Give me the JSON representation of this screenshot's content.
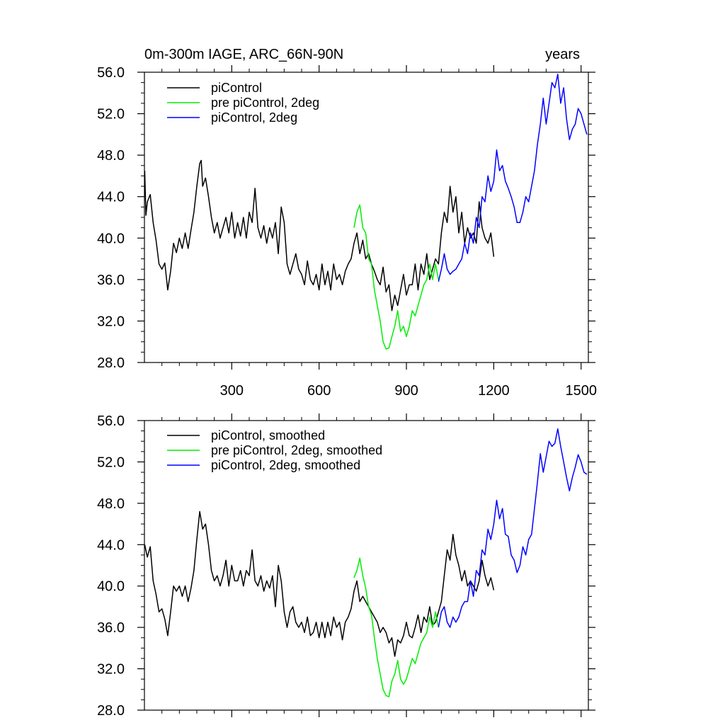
{
  "panel_top_title": "0m-300m IAGE, ARC_66N-90N",
  "panel_top_units": "years",
  "chart_data": [
    {
      "type": "line",
      "title": "0m-300m IAGE, ARC_66N-90N",
      "units_label": "years",
      "xlim": [
        0,
        1525
      ],
      "ylim": [
        28,
        56
      ],
      "x_ticks": [
        300,
        600,
        900,
        1200,
        1500
      ],
      "x_tick_labels": [
        "300",
        "600",
        "900",
        "1200",
        "1500"
      ],
      "y_ticks": [
        28,
        32,
        36,
        40,
        44,
        48,
        52,
        56
      ],
      "y_tick_labels": [
        "28.0",
        "32.0",
        "36.0",
        "40.0",
        "44.0",
        "48.0",
        "52.0",
        "56.0"
      ],
      "legend_position": "top-left",
      "series": [
        {
          "name": "piControl",
          "color": "#000000",
          "x": [
            1,
            5,
            10,
            20,
            30,
            40,
            50,
            60,
            70,
            80,
            90,
            100,
            110,
            120,
            130,
            140,
            150,
            160,
            170,
            180,
            190,
            195,
            200,
            210,
            220,
            230,
            240,
            250,
            260,
            270,
            280,
            290,
            300,
            310,
            320,
            330,
            340,
            350,
            360,
            370,
            380,
            390,
            400,
            410,
            420,
            430,
            440,
            450,
            460,
            470,
            480,
            490,
            500,
            510,
            520,
            530,
            540,
            550,
            560,
            570,
            580,
            590,
            600,
            610,
            620,
            630,
            640,
            650,
            660,
            670,
            680,
            690,
            700,
            710,
            720,
            730,
            740,
            750,
            760,
            770,
            780,
            790,
            800,
            810,
            820,
            830,
            840,
            850,
            860,
            870,
            880,
            890,
            900,
            910,
            920,
            930,
            940,
            950,
            960,
            970,
            980,
            990,
            1000,
            1010,
            1020,
            1030,
            1040,
            1050,
            1060,
            1070,
            1080,
            1090,
            1100,
            1110,
            1120,
            1130,
            1140,
            1150,
            1160,
            1170,
            1180,
            1190,
            1200
          ],
          "y": [
            46.5,
            42.2,
            43.5,
            44.2,
            41.5,
            39.8,
            37.5,
            37.0,
            37.6,
            35.0,
            36.8,
            39.5,
            38.6,
            40.0,
            39.0,
            40.5,
            39.0,
            40.8,
            42.5,
            45.0,
            47.2,
            47.5,
            45.0,
            45.8,
            44.0,
            42.0,
            40.5,
            41.5,
            40.0,
            41.0,
            42.0,
            40.5,
            42.5,
            40.0,
            41.5,
            40.2,
            42.0,
            40.0,
            42.5,
            41.5,
            44.8,
            41.0,
            40.0,
            41.2,
            39.5,
            41.0,
            40.0,
            41.5,
            38.5,
            43.0,
            41.5,
            37.5,
            36.5,
            37.5,
            38.5,
            37.0,
            36.5,
            35.5,
            37.8,
            36.0,
            35.5,
            36.5,
            35.0,
            37.5,
            35.5,
            36.8,
            35.0,
            37.5,
            36.0,
            36.5,
            35.5,
            36.8,
            37.5,
            38.0,
            39.5,
            40.5,
            38.5,
            39.8,
            38.0,
            38.5,
            37.5,
            36.8,
            36.0,
            35.5,
            37.2,
            34.8,
            35.5,
            33.0,
            34.5,
            33.5,
            35.0,
            36.5,
            34.5,
            35.5,
            35.5,
            37.5,
            35.0,
            37.5,
            36.5,
            38.5,
            36.0,
            37.0,
            38.0,
            37.5,
            40.5,
            42.5,
            41.5,
            45.0,
            42.5,
            44.0,
            40.5,
            42.5,
            39.5,
            41.0,
            40.0,
            40.5,
            39.5,
            43.5,
            41.0,
            40.0,
            39.5,
            40.5,
            38.2
          ]
        },
        {
          "name": "pre piControl, 2deg",
          "color": "#00ee00",
          "x": [
            720,
            730,
            740,
            750,
            760,
            770,
            780,
            790,
            800,
            810,
            820,
            830,
            840,
            850,
            860,
            870,
            880,
            890,
            900,
            910,
            920,
            930,
            940,
            950,
            960,
            970,
            980,
            990,
            1000,
            1010
          ],
          "y": [
            41.0,
            42.5,
            43.2,
            41.0,
            40.5,
            38.0,
            37.5,
            35.0,
            33.5,
            32.0,
            30.0,
            29.3,
            29.4,
            30.5,
            31.5,
            33.0,
            31.0,
            31.5,
            30.5,
            31.5,
            33.0,
            32.5,
            33.5,
            34.5,
            35.5,
            36.0,
            37.5,
            36.0,
            37.5,
            36.0
          ]
        },
        {
          "name": "piControl, 2deg",
          "color": "#0000ff",
          "x": [
            1010,
            1020,
            1030,
            1040,
            1050,
            1060,
            1070,
            1080,
            1090,
            1100,
            1110,
            1120,
            1130,
            1140,
            1150,
            1160,
            1170,
            1180,
            1190,
            1200,
            1210,
            1220,
            1230,
            1240,
            1250,
            1260,
            1270,
            1280,
            1290,
            1300,
            1310,
            1320,
            1330,
            1340,
            1350,
            1360,
            1370,
            1380,
            1390,
            1400,
            1410,
            1420,
            1430,
            1440,
            1450,
            1460,
            1470,
            1480,
            1490,
            1500,
            1510,
            1520
          ],
          "y": [
            35.8,
            37.0,
            38.5,
            37.0,
            36.5,
            36.8,
            37.0,
            37.5,
            38.0,
            39.5,
            38.5,
            40.5,
            39.5,
            42.0,
            41.0,
            44.0,
            43.5,
            46.0,
            44.5,
            45.5,
            48.5,
            46.5,
            47.0,
            45.5,
            44.8,
            44.0,
            43.0,
            41.5,
            41.5,
            42.5,
            44.0,
            43.5,
            45.0,
            46.5,
            49.0,
            51.0,
            53.5,
            51.0,
            53.0,
            55.0,
            54.5,
            55.8,
            53.0,
            54.5,
            51.5,
            49.5,
            50.5,
            51.0,
            52.5,
            52.0,
            51.0,
            50.0
          ]
        }
      ]
    },
    {
      "type": "line",
      "xlim": [
        0,
        1525
      ],
      "ylim": [
        28,
        56
      ],
      "x_ticks": [
        300,
        600,
        900,
        1200,
        1500
      ],
      "y_ticks": [
        28,
        32,
        36,
        40,
        44,
        48,
        52,
        56
      ],
      "y_tick_labels": [
        "28.0",
        "32.0",
        "36.0",
        "40.0",
        "44.0",
        "48.0",
        "52.0",
        "56.0"
      ],
      "legend_position": "top-left",
      "series": [
        {
          "name": "piControl, smoothed",
          "color": "#000000",
          "x": [
            1,
            10,
            20,
            30,
            40,
            50,
            60,
            70,
            80,
            90,
            100,
            110,
            120,
            130,
            140,
            150,
            160,
            170,
            180,
            190,
            200,
            210,
            220,
            230,
            240,
            250,
            260,
            270,
            280,
            290,
            300,
            310,
            320,
            330,
            340,
            350,
            360,
            370,
            380,
            390,
            400,
            410,
            420,
            430,
            440,
            450,
            460,
            470,
            480,
            490,
            500,
            510,
            520,
            530,
            540,
            550,
            560,
            570,
            580,
            590,
            600,
            610,
            620,
            630,
            640,
            650,
            660,
            670,
            680,
            690,
            700,
            710,
            720,
            730,
            740,
            750,
            760,
            770,
            780,
            790,
            800,
            810,
            820,
            830,
            840,
            850,
            860,
            870,
            880,
            890,
            900,
            910,
            920,
            930,
            940,
            950,
            960,
            970,
            980,
            990,
            1000,
            1010,
            1020,
            1030,
            1040,
            1050,
            1060,
            1070,
            1080,
            1090,
            1100,
            1110,
            1120,
            1130,
            1140,
            1150,
            1160,
            1170,
            1180,
            1190,
            1200
          ],
          "y": [
            44.0,
            42.8,
            43.8,
            40.5,
            39.2,
            37.5,
            37.8,
            36.8,
            35.2,
            37.5,
            40.0,
            39.5,
            40.0,
            39.0,
            40.0,
            38.5,
            39.8,
            41.5,
            44.5,
            47.2,
            45.5,
            46.0,
            44.0,
            41.5,
            40.5,
            41.0,
            40.0,
            41.0,
            42.5,
            40.0,
            42.0,
            40.5,
            40.5,
            41.5,
            40.0,
            41.5,
            41.0,
            43.5,
            40.5,
            40.0,
            41.0,
            39.5,
            40.5,
            39.8,
            41.0,
            38.0,
            42.0,
            40.5,
            37.5,
            36.0,
            37.5,
            38.0,
            36.5,
            36.0,
            36.5,
            35.5,
            37.0,
            35.2,
            35.5,
            36.5,
            35.0,
            36.5,
            35.0,
            36.5,
            35.2,
            37.0,
            36.0,
            36.5,
            34.8,
            36.5,
            37.0,
            37.8,
            39.5,
            40.5,
            38.5,
            39.0,
            38.5,
            38.0,
            37.5,
            37.0,
            36.5,
            35.5,
            36.0,
            35.5,
            34.5,
            35.0,
            33.2,
            34.8,
            34.5,
            35.2,
            36.5,
            35.2,
            35.0,
            36.0,
            37.2,
            35.5,
            37.0,
            36.5,
            38.0,
            36.2,
            36.5,
            37.5,
            38.5,
            41.0,
            43.5,
            42.5,
            45.0,
            43.0,
            42.0,
            40.5,
            41.5,
            40.0,
            40.5,
            40.0,
            39.5,
            40.5,
            42.5,
            41.0,
            40.0,
            40.8,
            39.6
          ]
        },
        {
          "name": "pre piControl, 2deg, smoothed",
          "color": "#00ee00",
          "x": [
            720,
            730,
            740,
            750,
            760,
            770,
            780,
            790,
            800,
            810,
            820,
            830,
            840,
            850,
            860,
            870,
            880,
            890,
            900,
            910,
            920,
            930,
            940,
            950,
            960,
            970,
            980,
            990,
            1000,
            1010
          ],
          "y": [
            40.8,
            41.5,
            42.7,
            41.0,
            39.8,
            38.0,
            37.2,
            35.0,
            33.0,
            31.5,
            30.0,
            29.4,
            29.3,
            30.8,
            31.5,
            32.8,
            31.0,
            30.5,
            31.0,
            32.0,
            33.0,
            32.5,
            33.5,
            34.5,
            35.0,
            35.5,
            37.0,
            36.0,
            37.5,
            36.0
          ]
        },
        {
          "name": "piControl, 2deg, smoothed",
          "color": "#0000ff",
          "x": [
            1010,
            1020,
            1030,
            1040,
            1050,
            1060,
            1070,
            1080,
            1090,
            1100,
            1110,
            1120,
            1130,
            1140,
            1150,
            1160,
            1170,
            1180,
            1190,
            1200,
            1210,
            1220,
            1230,
            1240,
            1250,
            1260,
            1270,
            1280,
            1290,
            1300,
            1310,
            1320,
            1330,
            1340,
            1350,
            1360,
            1370,
            1380,
            1390,
            1400,
            1410,
            1420,
            1430,
            1440,
            1450,
            1460,
            1470,
            1480,
            1490,
            1500,
            1510,
            1520
          ],
          "y": [
            36.0,
            37.5,
            38.0,
            36.5,
            36.0,
            37.0,
            36.5,
            37.0,
            38.0,
            38.5,
            38.5,
            40.5,
            39.0,
            41.5,
            41.0,
            43.5,
            43.0,
            45.5,
            44.5,
            46.0,
            48.3,
            46.5,
            47.5,
            45.0,
            44.8,
            43.0,
            42.5,
            41.3,
            42.0,
            43.8,
            43.0,
            44.5,
            45.0,
            47.5,
            50.0,
            52.8,
            51.0,
            52.5,
            54.0,
            53.5,
            53.8,
            55.2,
            53.5,
            52.0,
            50.5,
            49.2,
            50.5,
            51.5,
            52.7,
            52.0,
            51.0,
            50.8
          ]
        }
      ]
    }
  ]
}
